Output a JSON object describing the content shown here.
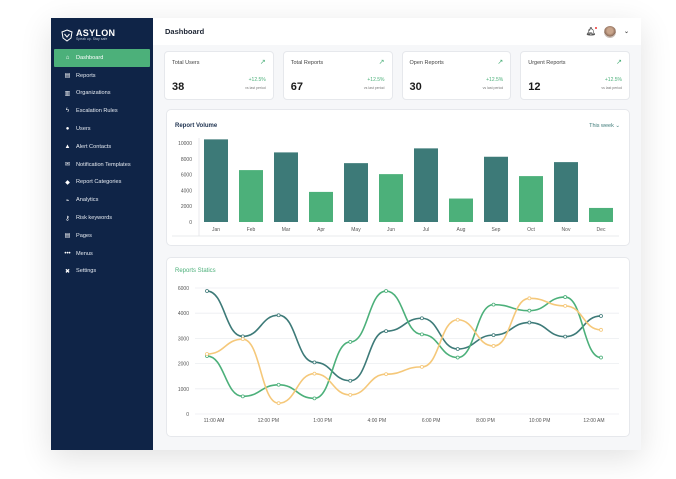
{
  "brand": {
    "name": "ASYLON",
    "tagline": "Speak up. Stay safe"
  },
  "sidebar": {
    "items": [
      {
        "label": "Dashboard",
        "icon": "home-icon",
        "glyph": "⌂",
        "active": true
      },
      {
        "label": "Reports",
        "icon": "document-icon",
        "glyph": "▤"
      },
      {
        "label": "Organizations",
        "icon": "building-icon",
        "glyph": "▥"
      },
      {
        "label": "Escalation Rules",
        "icon": "bolt-icon",
        "glyph": "ϟ"
      },
      {
        "label": "Users",
        "icon": "users-icon",
        "glyph": "●"
      },
      {
        "label": "Alert Contacts",
        "icon": "bell-icon",
        "glyph": "▲"
      },
      {
        "label": "Notification Templates",
        "icon": "envelope-icon",
        "glyph": "✉"
      },
      {
        "label": "Report Categories",
        "icon": "tags-icon",
        "glyph": "◆"
      },
      {
        "label": "Analytics",
        "icon": "chart-icon",
        "glyph": "⌁"
      },
      {
        "label": "Risk keywords",
        "icon": "key-icon",
        "glyph": "⚷"
      },
      {
        "label": "Pages",
        "icon": "page-icon",
        "glyph": "▤"
      },
      {
        "label": "Menus",
        "icon": "dots-icon",
        "glyph": "•••"
      },
      {
        "label": "Settings",
        "icon": "tools-icon",
        "glyph": "✖"
      }
    ]
  },
  "header": {
    "title": "Dashboard"
  },
  "stats": [
    {
      "label": "Total Users",
      "value": "38",
      "change": "+12.5%",
      "note": "vs last period"
    },
    {
      "label": "Total Reports",
      "value": "67",
      "change": "+12.5%",
      "note": "vs last period"
    },
    {
      "label": "Open Reports",
      "value": "30",
      "change": "+12.5%",
      "note": "vs last period"
    },
    {
      "label": "Urgent Reports",
      "value": "12",
      "change": "+12.5%",
      "note": "vs last period"
    }
  ],
  "colors": {
    "teal": "#3d7a78",
    "green": "#4cb07a",
    "orange": "#f5c87a",
    "sidebar": "#0f2447"
  },
  "chart_data": [
    {
      "type": "bar",
      "title": "Report Volume",
      "selector": "This week",
      "categories": [
        "Jan",
        "Feb",
        "Mar",
        "Apr",
        "May",
        "Jun",
        "Jul",
        "Aug",
        "Sep",
        "Oct",
        "Nov",
        "Dec"
      ],
      "values": [
        10460,
        6570,
        8810,
        3810,
        7450,
        6060,
        9320,
        2970,
        8260,
        5810,
        7580,
        1780
      ],
      "ylim": [
        0,
        10000
      ],
      "yticks": [
        "0",
        "2000",
        "4000",
        "6000",
        "8000",
        "10000"
      ],
      "grid": false
    },
    {
      "type": "line",
      "title": "Reports Statics",
      "xticks": [
        "11:00 AM",
        "12:00 PM",
        "1:00 PM",
        "4:00 PM",
        "6:00 PM",
        "8:00 PM",
        "10:00 PM",
        "12:00 AM"
      ],
      "yticks": [
        "0",
        "1000",
        "2000",
        "3000",
        "4000",
        "6000"
      ],
      "grid": true,
      "series": [
        {
          "color": "#3d7a78",
          "values": [
            4880,
            3080,
            3920,
            2050,
            1320,
            3290,
            3800,
            2580,
            3130,
            3630,
            3070,
            3890
          ]
        },
        {
          "color": "#4cb07a",
          "values": [
            2300,
            700,
            1160,
            620,
            2860,
            4880,
            3160,
            2240,
            4340,
            4100,
            4640,
            2240
          ]
        },
        {
          "color": "#f5c87a",
          "values": [
            2380,
            2970,
            430,
            1600,
            760,
            1580,
            1870,
            3740,
            2700,
            4590,
            4290,
            3340
          ]
        }
      ]
    }
  ]
}
